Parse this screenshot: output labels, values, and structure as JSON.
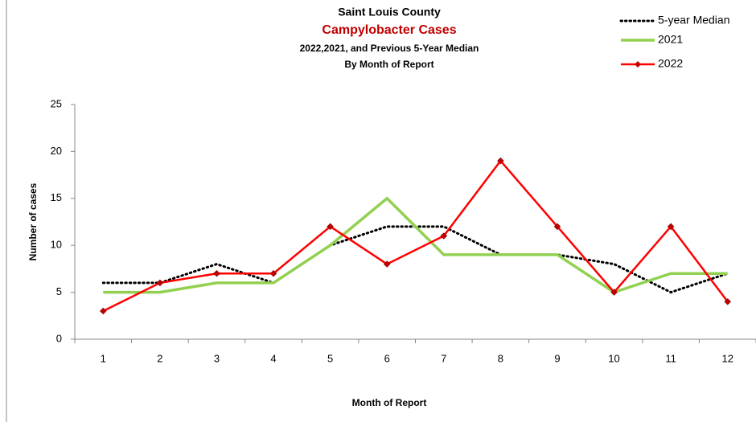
{
  "chart_data": {
    "type": "line",
    "title": "Saint Louis County",
    "subtitle": "Campylobacter Cases",
    "subtitle2": "2022,2021, and Previous 5-Year Median",
    "subtitle3": "By Month of Report",
    "x_label": "Month of Report",
    "y_label": "Number of cases",
    "categories": [
      "1",
      "2",
      "3",
      "4",
      "5",
      "6",
      "7",
      "8",
      "9",
      "10",
      "11",
      "12"
    ],
    "series": [
      {
        "name": "5-year Median",
        "color": "#000000",
        "style": "dotted",
        "values": [
          6,
          6,
          8,
          6,
          10,
          12,
          12,
          9,
          9,
          8,
          5,
          7
        ]
      },
      {
        "name": "2021",
        "color": "#92d050",
        "style": "solid",
        "values": [
          5,
          5,
          6,
          6,
          10,
          15,
          9,
          9,
          9,
          5,
          7,
          7
        ]
      },
      {
        "name": "2022",
        "color": "#ff0000",
        "style": "solid",
        "marker": "diamond",
        "marker_color": "#c00000",
        "values": [
          3,
          6,
          7,
          7,
          12,
          8,
          11,
          19,
          12,
          5,
          12,
          4
        ]
      }
    ],
    "ylim": [
      0,
      25
    ],
    "yticks": [
      0,
      5,
      10,
      15,
      20,
      25
    ],
    "grid": false,
    "legend": "top-right"
  }
}
